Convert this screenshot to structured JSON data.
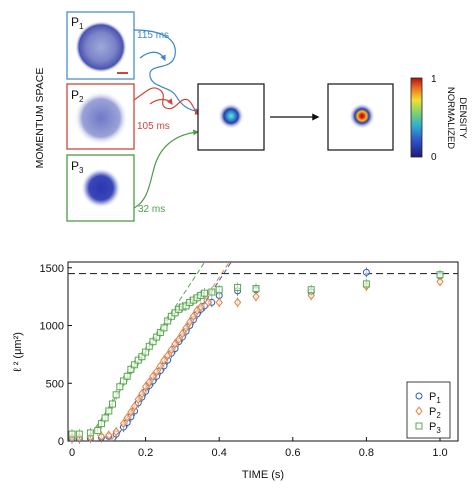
{
  "schematic": {
    "side_label": "MOMENTUM SPACE",
    "panels": [
      {
        "label": "P",
        "sub": "1",
        "color": "#4a90c8",
        "arrow_time": "115 ms"
      },
      {
        "label": "P",
        "sub": "2",
        "color": "#d0463a",
        "arrow_time": "105 ms"
      },
      {
        "label": "P",
        "sub": "3",
        "color": "#4f9a4a",
        "arrow_time": "32 ms"
      }
    ],
    "colorbar": {
      "title_line1": "NORMALIZED",
      "title_line2": "DENSITY",
      "max": "1",
      "min": "0"
    }
  },
  "chart_data": {
    "type": "scatter",
    "xlabel": "TIME (s)",
    "ylabel": "ℓ ² (μm²)",
    "xlim": [
      0,
      1.0
    ],
    "ylim": [
      0,
      1550
    ],
    "xticks": [
      0,
      0.2,
      0.4,
      0.6,
      0.8,
      1.0
    ],
    "xtick_labels": [
      "0",
      "0.2",
      "0.4",
      "0.6",
      "0.8",
      "1.0"
    ],
    "yticks": [
      0,
      500,
      1000,
      1500
    ],
    "ytick_labels": [
      "0",
      "500",
      "1000",
      "1500"
    ],
    "reference_line": 1450,
    "legend_position": "bottom-right",
    "series": [
      {
        "name": "P",
        "sub": "1",
        "marker": "circle",
        "color": "#2e5fb3",
        "x": [
          0,
          0.02,
          0.05,
          0.08,
          0.1,
          0.12,
          0.14,
          0.15,
          0.16,
          0.17,
          0.18,
          0.19,
          0.2,
          0.21,
          0.22,
          0.23,
          0.24,
          0.25,
          0.26,
          0.27,
          0.28,
          0.29,
          0.3,
          0.31,
          0.32,
          0.33,
          0.34,
          0.35,
          0.36,
          0.38,
          0.4,
          0.45,
          0.5,
          0.65,
          0.8,
          1.0
        ],
        "y": [
          20,
          20,
          25,
          30,
          40,
          60,
          120,
          160,
          210,
          260,
          330,
          380,
          430,
          480,
          520,
          560,
          610,
          650,
          700,
          760,
          800,
          860,
          900,
          950,
          1000,
          1050,
          1100,
          1140,
          1170,
          1200,
          1260,
          1300,
          1310,
          1290,
          1460,
          1430
        ]
      },
      {
        "name": "P",
        "sub": "2",
        "marker": "diamond",
        "color": "#e8803a",
        "x": [
          0,
          0.02,
          0.05,
          0.08,
          0.1,
          0.12,
          0.14,
          0.15,
          0.16,
          0.17,
          0.18,
          0.19,
          0.2,
          0.21,
          0.22,
          0.23,
          0.24,
          0.25,
          0.26,
          0.27,
          0.28,
          0.29,
          0.3,
          0.31,
          0.32,
          0.33,
          0.34,
          0.35,
          0.37,
          0.4,
          0.45,
          0.5,
          0.65,
          0.8,
          1.0
        ],
        "y": [
          30,
          30,
          35,
          40,
          50,
          80,
          150,
          200,
          250,
          300,
          360,
          410,
          470,
          510,
          560,
          600,
          650,
          700,
          740,
          790,
          840,
          880,
          930,
          980,
          1030,
          1080,
          1130,
          1160,
          1200,
          1200,
          1200,
          1250,
          1260,
          1340,
          1380
        ]
      },
      {
        "name": "P",
        "sub": "3",
        "marker": "square",
        "color": "#5aa84f",
        "x": [
          0,
          0.02,
          0.05,
          0.07,
          0.08,
          0.09,
          0.1,
          0.11,
          0.12,
          0.13,
          0.14,
          0.15,
          0.16,
          0.17,
          0.18,
          0.19,
          0.2,
          0.21,
          0.22,
          0.23,
          0.24,
          0.25,
          0.26,
          0.27,
          0.28,
          0.29,
          0.3,
          0.31,
          0.32,
          0.33,
          0.34,
          0.35,
          0.36,
          0.38,
          0.4,
          0.45,
          0.5,
          0.65,
          0.8,
          1.0
        ],
        "y": [
          60,
          60,
          70,
          90,
          150,
          200,
          260,
          320,
          400,
          470,
          520,
          560,
          620,
          660,
          700,
          730,
          770,
          820,
          860,
          900,
          940,
          980,
          1040,
          1080,
          1110,
          1140,
          1160,
          1170,
          1200,
          1220,
          1240,
          1260,
          1280,
          1290,
          1310,
          1330,
          1320,
          1310,
          1360,
          1440
        ]
      }
    ]
  }
}
